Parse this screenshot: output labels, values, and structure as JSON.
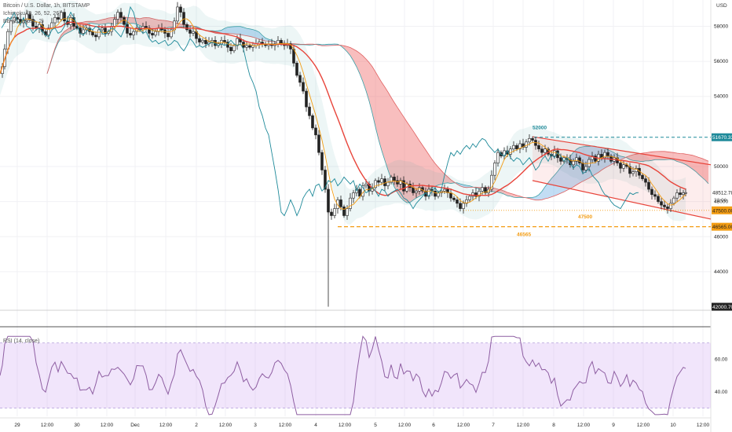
{
  "legend": {
    "line1": "Bitcoin / U.S. Dollar, 1h, BITSTAMP",
    "line2": "Ichimoku (9, 26, 52, 26)",
    "line3": "BB (20, close, 2)",
    "currency": "USD",
    "rsi_label": "RSI (14, close)"
  },
  "chart_data": {
    "type": "candlestick",
    "x_ticks": [
      "29",
      "12:00",
      "30",
      "12:00",
      "Dec",
      "12:00",
      "2",
      "12:00",
      "3",
      "12:00",
      "4",
      "12:00",
      "5",
      "12:00",
      "6",
      "12:00",
      "7",
      "12:00",
      "8",
      "12:00",
      "9",
      "12:00",
      "10",
      "12:00"
    ],
    "price_axis_ticks": [
      58000,
      56000,
      54000,
      50000,
      48000,
      46000,
      44000
    ],
    "price_ylim": [
      41800,
      59500
    ],
    "rsi_axis_ticks": [
      60.0,
      40.0
    ],
    "rsi_ylim": [
      25,
      78
    ],
    "rsi_band": [
      70,
      30
    ],
    "annotations": {
      "level_52000": "52000",
      "level_47500": "47500",
      "level_46565": "46565"
    },
    "price_tags": {
      "p51670": "51670.33",
      "p48512": "48512.78",
      "p48512_sub": "32:06",
      "p47500": "47500.00",
      "p46565": "46565.00",
      "p42000": "42000.70"
    },
    "close_path": [
      [
        0,
        55300
      ],
      [
        3,
        55700
      ],
      [
        6,
        56700
      ],
      [
        10,
        57700
      ],
      [
        14,
        58300
      ],
      [
        18,
        58500
      ],
      [
        22,
        58400
      ],
      [
        26,
        58200
      ],
      [
        30,
        58300
      ],
      [
        34,
        58700
      ],
      [
        38,
        58400
      ],
      [
        42,
        58000
      ],
      [
        46,
        57900
      ],
      [
        50,
        58100
      ],
      [
        54,
        57700
      ],
      [
        58,
        57500
      ],
      [
        62,
        57900
      ],
      [
        66,
        58200
      ],
      [
        70,
        58500
      ],
      [
        74,
        58400
      ],
      [
        78,
        58800
      ],
      [
        82,
        58300
      ],
      [
        86,
        58100
      ],
      [
        90,
        58500
      ],
      [
        94,
        58000
      ],
      [
        98,
        57900
      ],
      [
        102,
        57600
      ],
      [
        106,
        57800
      ],
      [
        110,
        57900
      ],
      [
        114,
        57700
      ],
      [
        118,
        57500
      ],
      [
        122,
        57400
      ],
      [
        126,
        57800
      ],
      [
        130,
        57900
      ],
      [
        134,
        57600
      ],
      [
        138,
        57700
      ],
      [
        142,
        58000
      ],
      [
        146,
        58400
      ],
      [
        150,
        58800
      ],
      [
        154,
        58500
      ],
      [
        158,
        58100
      ],
      [
        162,
        57600
      ],
      [
        166,
        57500
      ],
      [
        170,
        57700
      ],
      [
        174,
        57900
      ],
      [
        178,
        57800
      ],
      [
        182,
        58000
      ],
      [
        186,
        57900
      ],
      [
        190,
        57600
      ],
      [
        194,
        57500
      ],
      [
        198,
        57700
      ],
      [
        202,
        57900
      ],
      [
        206,
        57800
      ],
      [
        210,
        57600
      ],
      [
        214,
        57400
      ],
      [
        218,
        57800
      ],
      [
        222,
        58300
      ],
      [
        226,
        59100
      ],
      [
        230,
        58800
      ],
      [
        234,
        58100
      ],
      [
        238,
        57800
      ],
      [
        242,
        57600
      ],
      [
        246,
        57700
      ],
      [
        250,
        57300
      ],
      [
        254,
        57100
      ],
      [
        258,
        57200
      ],
      [
        262,
        57000
      ],
      [
        266,
        57100
      ],
      [
        270,
        57200
      ],
      [
        274,
        56900
      ],
      [
        278,
        57000
      ],
      [
        282,
        57200
      ],
      [
        286,
        57100
      ],
      [
        290,
        56800
      ],
      [
        294,
        56600
      ],
      [
        298,
        56900
      ],
      [
        302,
        57300
      ],
      [
        306,
        57100
      ],
      [
        310,
        56800
      ],
      [
        314,
        56900
      ],
      [
        318,
        56800
      ],
      [
        322,
        56900
      ],
      [
        326,
        57000
      ],
      [
        330,
        57100
      ],
      [
        334,
        57000
      ],
      [
        338,
        56900
      ],
      [
        342,
        57000
      ],
      [
        346,
        56900
      ],
      [
        350,
        57000
      ],
      [
        354,
        57200
      ],
      [
        358,
        57000
      ],
      [
        362,
        56900
      ],
      [
        366,
        57000
      ],
      [
        370,
        56700
      ],
      [
        374,
        55900
      ],
      [
        378,
        55200
      ],
      [
        382,
        54800
      ],
      [
        386,
        54300
      ],
      [
        390,
        53400
      ],
      [
        394,
        52900
      ],
      [
        398,
        52200
      ],
      [
        402,
        51800
      ],
      [
        406,
        50800
      ],
      [
        410,
        49800
      ],
      [
        414,
        48700
      ],
      [
        418,
        47400
      ],
      [
        422,
        47200
      ],
      [
        426,
        47600
      ],
      [
        430,
        48100
      ],
      [
        434,
        47700
      ],
      [
        438,
        47200
      ],
      [
        442,
        47600
      ],
      [
        446,
        48200
      ],
      [
        450,
        48500
      ],
      [
        454,
        48700
      ],
      [
        458,
        48300
      ],
      [
        462,
        48900
      ],
      [
        466,
        49000
      ],
      [
        470,
        48600
      ],
      [
        474,
        48800
      ],
      [
        478,
        49200
      ],
      [
        482,
        49100
      ],
      [
        486,
        49300
      ],
      [
        490,
        48900
      ],
      [
        494,
        49100
      ],
      [
        498,
        49400
      ],
      [
        502,
        49200
      ],
      [
        506,
        49000
      ],
      [
        510,
        49200
      ],
      [
        514,
        48600
      ],
      [
        518,
        49000
      ],
      [
        522,
        48800
      ],
      [
        526,
        48500
      ],
      [
        530,
        48600
      ],
      [
        534,
        48800
      ],
      [
        538,
        48600
      ],
      [
        542,
        48300
      ],
      [
        546,
        48700
      ],
      [
        550,
        48600
      ],
      [
        554,
        48300
      ],
      [
        558,
        48500
      ],
      [
        562,
        48600
      ],
      [
        566,
        48700
      ],
      [
        570,
        48500
      ],
      [
        574,
        48200
      ],
      [
        578,
        48100
      ],
      [
        582,
        47900
      ],
      [
        586,
        47600
      ],
      [
        590,
        47900
      ],
      [
        594,
        48100
      ],
      [
        598,
        48300
      ],
      [
        602,
        48500
      ],
      [
        606,
        48300
      ],
      [
        610,
        48600
      ],
      [
        614,
        48800
      ],
      [
        618,
        48500
      ],
      [
        622,
        48700
      ],
      [
        626,
        49500
      ],
      [
        630,
        50200
      ],
      [
        634,
        50800
      ],
      [
        638,
        50600
      ],
      [
        642,
        50900
      ],
      [
        646,
        50700
      ],
      [
        650,
        51000
      ],
      [
        654,
        51200
      ],
      [
        658,
        51000
      ],
      [
        662,
        51300
      ],
      [
        666,
        51100
      ],
      [
        670,
        51400
      ],
      [
        674,
        51600
      ],
      [
        678,
        51500
      ],
      [
        682,
        51200
      ],
      [
        686,
        51000
      ],
      [
        690,
        50800
      ],
      [
        694,
        51000
      ],
      [
        698,
        50700
      ],
      [
        702,
        50600
      ],
      [
        706,
        50900
      ],
      [
        710,
        50500
      ],
      [
        714,
        50300
      ],
      [
        718,
        50500
      ],
      [
        722,
        50400
      ],
      [
        726,
        50100
      ],
      [
        730,
        50300
      ],
      [
        734,
        50500
      ],
      [
        738,
        50200
      ],
      [
        742,
        49800
      ],
      [
        746,
        50000
      ],
      [
        750,
        50400
      ],
      [
        754,
        50600
      ],
      [
        758,
        50300
      ],
      [
        762,
        50700
      ],
      [
        766,
        50500
      ],
      [
        770,
        50800
      ],
      [
        774,
        50600
      ],
      [
        778,
        50300
      ],
      [
        782,
        50500
      ],
      [
        786,
        50200
      ],
      [
        790,
        49900
      ],
      [
        794,
        50100
      ],
      [
        798,
        50000
      ],
      [
        802,
        49600
      ],
      [
        806,
        49700
      ],
      [
        810,
        49900
      ],
      [
        814,
        49500
      ],
      [
        818,
        49300
      ],
      [
        822,
        49100
      ],
      [
        826,
        48700
      ],
      [
        830,
        48400
      ],
      [
        834,
        48300
      ],
      [
        838,
        48000
      ],
      [
        842,
        47800
      ],
      [
        846,
        47700
      ],
      [
        850,
        47600
      ],
      [
        854,
        47900
      ],
      [
        858,
        48200
      ],
      [
        862,
        48500
      ],
      [
        866,
        48400
      ],
      [
        870,
        48500
      ],
      [
        873,
        48512
      ]
    ]
  }
}
